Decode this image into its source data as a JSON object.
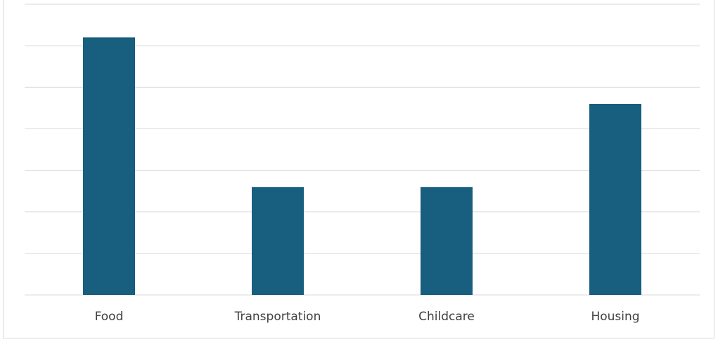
{
  "chart_data": {
    "type": "bar",
    "categories": [
      "Food",
      "Transportation",
      "Childcare",
      "Housing"
    ],
    "values": [
      6.2,
      2.6,
      2.6,
      4.6
    ],
    "ylim": [
      0,
      7
    ],
    "grid": true,
    "bar_color": "#175e7f",
    "grid_color": "#d9d9d9",
    "axis_color": "#d9d9d9"
  }
}
